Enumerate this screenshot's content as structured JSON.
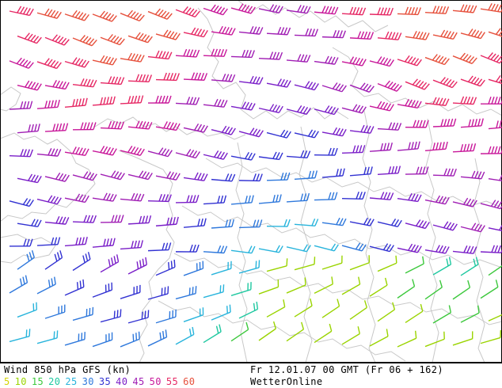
{
  "map": {
    "product_label": "Wind 850 hPa GFS (kn)",
    "valid_time": "Fr 12.01.07 00 GMT (Fr 06 + 162)",
    "brand": "WetterOnline",
    "speed_scale": [
      {
        "value": "5",
        "color": "#d4d400"
      },
      {
        "value": "10",
        "color": "#9ad400"
      },
      {
        "value": "15",
        "color": "#3cc83c"
      },
      {
        "value": "20",
        "color": "#1ec8a0"
      },
      {
        "value": "25",
        "color": "#28b4dc"
      },
      {
        "value": "30",
        "color": "#2e78dc"
      },
      {
        "value": "35",
        "color": "#3232d2"
      },
      {
        "value": "40",
        "color": "#7a1ec8"
      },
      {
        "value": "45",
        "color": "#a01eb4"
      },
      {
        "value": "50",
        "color": "#c8189a"
      },
      {
        "value": "55",
        "color": "#e62864"
      },
      {
        "value": "60",
        "color": "#e6503c"
      }
    ],
    "background_color": "#ffffff",
    "border_color": "#c8c8c8"
  }
}
